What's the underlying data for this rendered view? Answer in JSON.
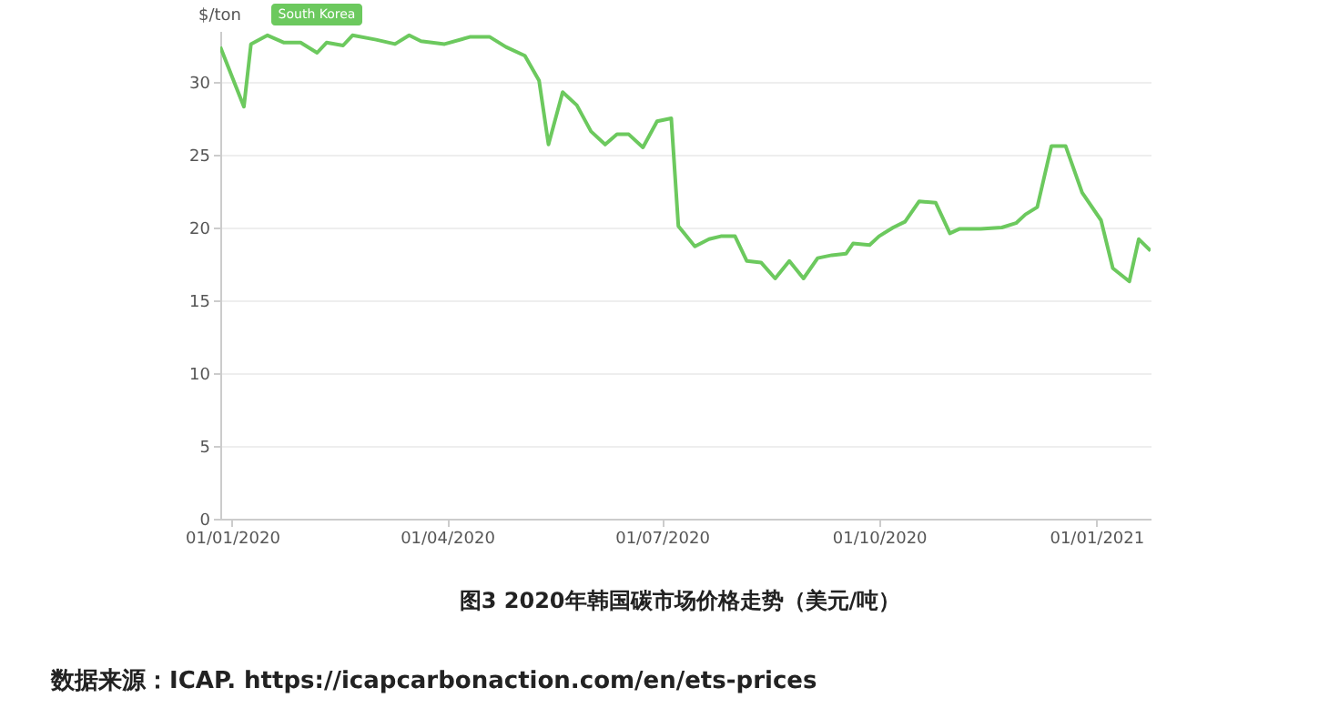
{
  "chart_data": {
    "type": "line",
    "title": "图3 2020年韩国碳市场价格走势（美元/吨）",
    "ylabel": "$/ton",
    "x": [
      "2019-12-27",
      "2020-01-06",
      "2020-01-09",
      "2020-01-16",
      "2020-01-23",
      "2020-01-30",
      "2020-02-06",
      "2020-02-10",
      "2020-02-17",
      "2020-02-21",
      "2020-03-02",
      "2020-03-10",
      "2020-03-16",
      "2020-03-21",
      "2020-03-31",
      "2020-04-11",
      "2020-04-19",
      "2020-04-26",
      "2020-05-04",
      "2020-05-10",
      "2020-05-14",
      "2020-05-20",
      "2020-05-26",
      "2020-06-01",
      "2020-06-07",
      "2020-06-12",
      "2020-06-17",
      "2020-06-23",
      "2020-06-29",
      "2020-07-05",
      "2020-07-08",
      "2020-07-15",
      "2020-07-21",
      "2020-07-26",
      "2020-08-01",
      "2020-08-06",
      "2020-08-12",
      "2020-08-18",
      "2020-08-24",
      "2020-08-30",
      "2020-09-05",
      "2020-09-11",
      "2020-09-17",
      "2020-09-20",
      "2020-09-27",
      "2020-10-01",
      "2020-10-07",
      "2020-10-12",
      "2020-10-18",
      "2020-10-25",
      "2020-10-31",
      "2020-11-04",
      "2020-11-13",
      "2020-11-22",
      "2020-11-28",
      "2020-12-02",
      "2020-12-07",
      "2020-12-13",
      "2020-12-19",
      "2020-12-26",
      "2021-01-03",
      "2021-01-08",
      "2021-01-15",
      "2021-01-19",
      "2021-01-24"
    ],
    "series": [
      {
        "name": "South Korea",
        "color": "#6cc95e",
        "values": [
          32.4,
          28.3,
          32.6,
          33.2,
          32.7,
          32.7,
          32.0,
          32.7,
          32.5,
          33.2,
          32.9,
          32.6,
          33.2,
          32.8,
          32.6,
          33.1,
          33.1,
          32.4,
          31.8,
          30.1,
          25.7,
          29.3,
          28.4,
          26.6,
          25.7,
          26.4,
          26.4,
          25.5,
          27.3,
          27.5,
          20.1,
          18.7,
          19.2,
          19.4,
          19.4,
          17.7,
          17.6,
          16.5,
          17.7,
          16.5,
          17.9,
          18.1,
          18.2,
          18.9,
          18.8,
          19.4,
          20.0,
          20.4,
          21.8,
          21.7,
          19.6,
          19.9,
          19.9,
          20.0,
          20.3,
          20.9,
          21.4,
          25.6,
          25.6,
          22.4,
          20.5,
          17.2,
          16.3,
          19.2,
          18.4
        ]
      }
    ],
    "xlim": [
      "2019-12-27",
      "2021-01-24"
    ],
    "xticks": [
      {
        "value": "2020-01-01",
        "label": "01/01/2020"
      },
      {
        "value": "2020-04-01",
        "label": "01/04/2020"
      },
      {
        "value": "2020-07-01",
        "label": "01/07/2020"
      },
      {
        "value": "2020-10-01",
        "label": "01/10/2020"
      },
      {
        "value": "2021-01-01",
        "label": "01/01/2021"
      }
    ],
    "ylim": [
      0,
      33.5
    ],
    "yticks": [
      0,
      5,
      10,
      15,
      20,
      25,
      30
    ],
    "grid": "y",
    "marker": "none",
    "line_style": "solid",
    "annotations": [
      "数据来源：ICAP. https://icapcarbonaction.com/en/ets-prices"
    ]
  }
}
